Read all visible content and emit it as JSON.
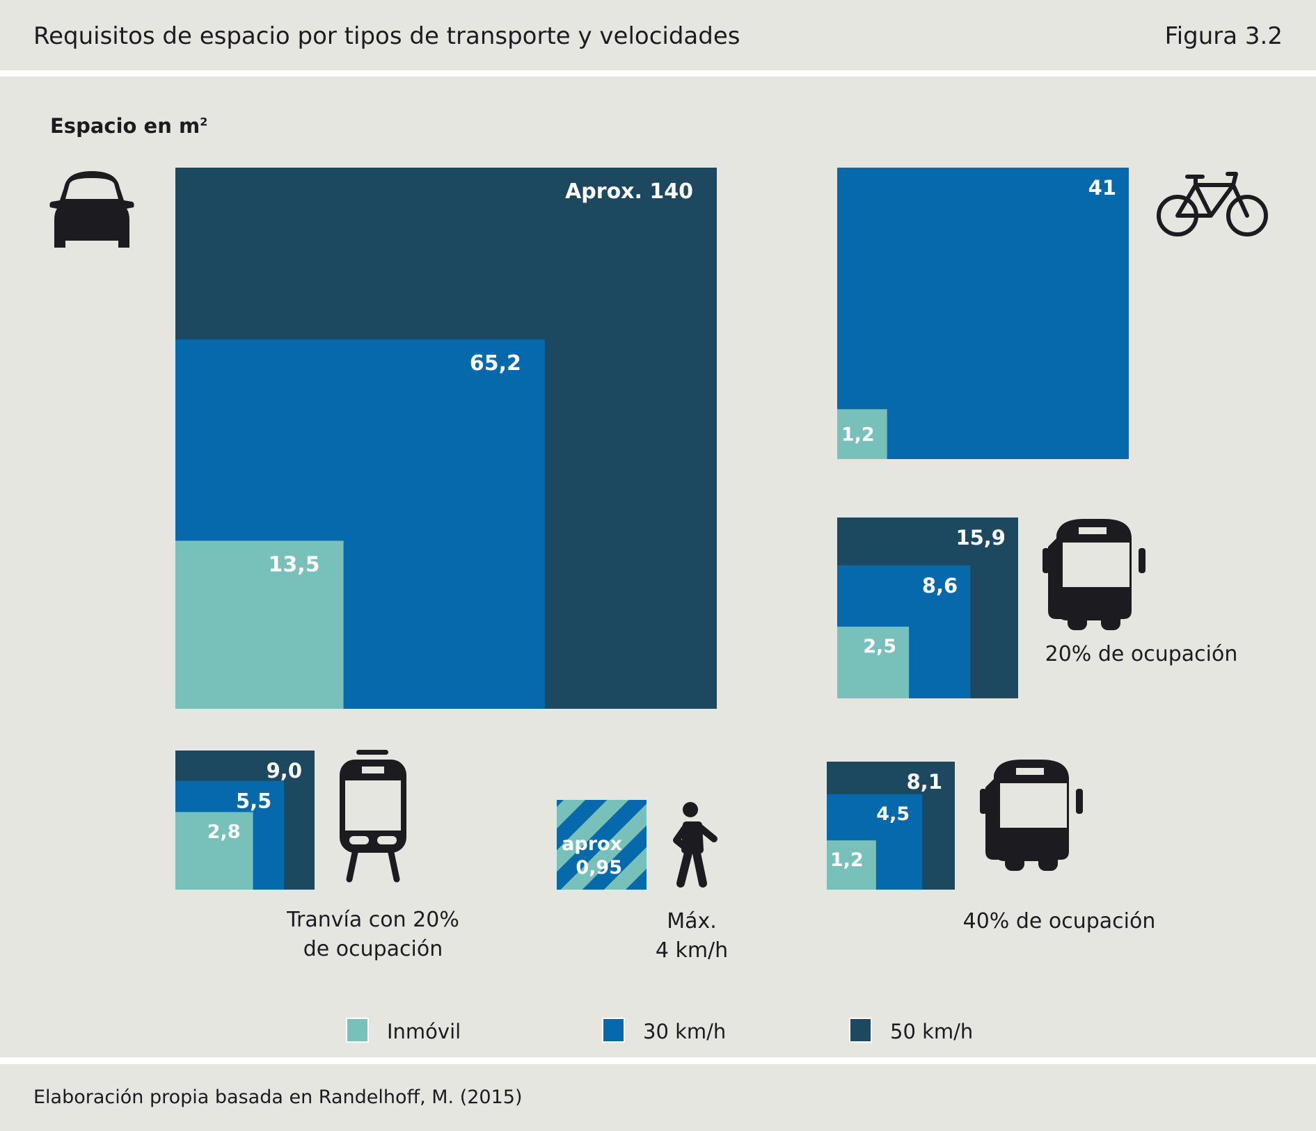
{
  "header": {
    "title": "Requisitos de espacio por tipos de transporte y velocidades",
    "figure": "Figura 3.2"
  },
  "footer": {
    "source": "Elaboración propia basada en Randelhoff, M. (2015)"
  },
  "colors": {
    "background": "#e6e6e1",
    "inmovil": "#78c0ba",
    "kmh30": "#0569ab",
    "kmh50": "#1d4960",
    "icon": "#1c1b1f"
  },
  "chart_data": {
    "type": "nested-square-area",
    "title": "Requisitos de espacio por tipos de transporte y velocidades",
    "ylabel": "Espacio en m²",
    "units_label": "Espacio en m",
    "units_sup": "2",
    "legend_position": "bottom",
    "legend": [
      {
        "key": "inmovil",
        "label": "Inmóvil"
      },
      {
        "key": "kmh30",
        "label": "30 km/h"
      },
      {
        "key": "kmh50",
        "label": "50 km/h"
      }
    ],
    "groups": [
      {
        "id": "car",
        "icon": "car-icon",
        "caption": [],
        "series": [
          {
            "key": "kmh50",
            "value": 140,
            "label": "Aprox. 140"
          },
          {
            "key": "kmh30",
            "value": 65.2,
            "label": "65,2"
          },
          {
            "key": "inmovil",
            "value": 13.5,
            "label": "13,5"
          }
        ]
      },
      {
        "id": "bicycle",
        "icon": "bicycle-icon",
        "caption": [],
        "series": [
          {
            "key": "kmh30",
            "value": 41,
            "label": "41"
          },
          {
            "key": "inmovil",
            "value": 1.2,
            "label": "1,2"
          }
        ]
      },
      {
        "id": "bus-20",
        "icon": "bus-icon",
        "caption": [
          "20% de ocupación"
        ],
        "series": [
          {
            "key": "kmh50",
            "value": 15.9,
            "label": "15,9"
          },
          {
            "key": "kmh30",
            "value": 8.6,
            "label": "8,6"
          },
          {
            "key": "inmovil",
            "value": 2.5,
            "label": "2,5"
          }
        ]
      },
      {
        "id": "tram-20",
        "icon": "tram-icon",
        "caption": [
          "Tranvía con 20%",
          "de ocupación"
        ],
        "series": [
          {
            "key": "kmh50",
            "value": 9.0,
            "label": "9,0"
          },
          {
            "key": "kmh30",
            "value": 5.5,
            "label": "5,5"
          },
          {
            "key": "inmovil",
            "value": 2.8,
            "label": "2,8"
          }
        ]
      },
      {
        "id": "pedestrian",
        "icon": "pedestrian-icon",
        "caption": [
          "Máx.",
          "4 km/h"
        ],
        "series": [
          {
            "key": "striped",
            "value": 0.95,
            "label": "aprox 0,95",
            "label_lines": [
              "aprox",
              "0,95"
            ]
          }
        ]
      },
      {
        "id": "bus-40",
        "icon": "bus-icon",
        "caption": [
          "40% de ocupación"
        ],
        "series": [
          {
            "key": "kmh50",
            "value": 8.1,
            "label": "8,1"
          },
          {
            "key": "kmh30",
            "value": 4.5,
            "label": "4,5"
          },
          {
            "key": "inmovil",
            "value": 1.2,
            "label": "1,2"
          }
        ]
      }
    ]
  }
}
